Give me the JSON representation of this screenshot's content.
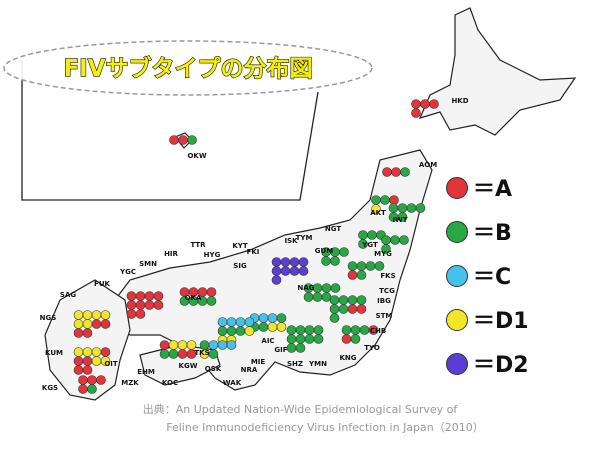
{
  "title": "FIVサブタイプの分布図",
  "legend": [
    {
      "label": "＝A",
      "color": "#e3343c"
    },
    {
      "label": "＝B",
      "color": "#27a845"
    },
    {
      "label": "＝C",
      "color": "#45c2ea"
    },
    {
      "label": "＝D1",
      "color": "#f3e628"
    },
    {
      "label": "＝D2",
      "color": "#5b3fd4"
    }
  ],
  "regions": [
    "HKD",
    "OKW",
    "AOM",
    "AKT",
    "IWT",
    "YGT",
    "MYG",
    "NGT",
    "ISK",
    "TYM",
    "GUM",
    "FKS",
    "TCG",
    "IBG",
    "STM",
    "CHB",
    "TYO",
    "KNG",
    "YMN",
    "SHZ",
    "NAG",
    "GIF",
    "AIC",
    "MIE",
    "NRA",
    "WAK",
    "OSK",
    "HYG",
    "KYT",
    "SIG",
    "FKI",
    "TTR",
    "HIR",
    "SMN",
    "OKA",
    "YGC",
    "FUK",
    "SAG",
    "NGS",
    "KUM",
    "KGS",
    "MZK",
    "OIT",
    "EHM",
    "KOC",
    "KGW",
    "TKS"
  ],
  "source": [
    "出典：An Updated Nation-Wide Epidemiological Survey of",
    "Feline Immunodeficiency Virus Infection in Japan（2010）"
  ]
}
